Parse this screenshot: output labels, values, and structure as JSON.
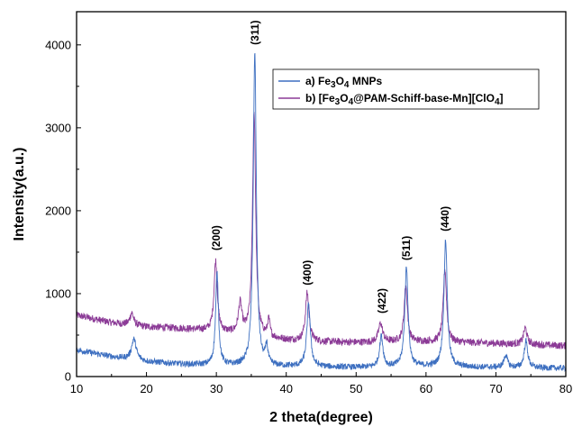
{
  "chart_data": {
    "type": "line",
    "xlabel": "2 theta(degree)",
    "ylabel": "Intensity(a.u.)",
    "xlim": [
      10,
      80
    ],
    "ylim": [
      0,
      4400
    ],
    "x_ticks": [
      "10",
      "20",
      "30",
      "40",
      "50",
      "60",
      "70",
      "80"
    ],
    "y_ticks": [
      "0",
      "1000",
      "2000",
      "3000",
      "4000"
    ],
    "grid": false,
    "legend_position": "top-right",
    "colors": {
      "series_a": "#3d6fc0",
      "series_b": "#8b3a96"
    },
    "legend": {
      "a": {
        "prefix": "a) Fe",
        "sub1": "3",
        "mid": "O",
        "sub2": "4",
        "suffix": " MNPs"
      },
      "b": {
        "prefix": "b) [Fe",
        "sub1": "3",
        "mid": "O",
        "sub2": "4",
        "rest": "@PAM-Schiff-base-Mn][ClO",
        "sub3": "4",
        "suffix": "]"
      }
    },
    "peak_labels": [
      {
        "text": "(200)",
        "x": 30.0,
        "y": 1520
      },
      {
        "text": "(311)",
        "x": 35.5,
        "y": 4000
      },
      {
        "text": "(400)",
        "x": 43.0,
        "y": 1100
      },
      {
        "text": "(422)",
        "x": 53.7,
        "y": 760
      },
      {
        "text": "(511)",
        "x": 57.2,
        "y": 1400
      },
      {
        "text": "(440)",
        "x": 62.7,
        "y": 1750
      }
    ],
    "series": [
      {
        "key": "a",
        "baseline": [
          [
            10,
            320
          ],
          [
            15,
            240
          ],
          [
            20,
            180
          ],
          [
            25,
            150
          ],
          [
            30,
            130
          ],
          [
            40,
            120
          ],
          [
            50,
            110
          ],
          [
            60,
            120
          ],
          [
            70,
            110
          ],
          [
            80,
            100
          ]
        ],
        "peaks": [
          {
            "x": 18.2,
            "h": 250,
            "w": 0.4
          },
          {
            "x": 30.1,
            "h": 1110,
            "w": 0.25
          },
          {
            "x": 35.5,
            "h": 3800,
            "w": 0.26
          },
          {
            "x": 37.2,
            "h": 220,
            "w": 0.2
          },
          {
            "x": 43.2,
            "h": 760,
            "w": 0.3
          },
          {
            "x": 53.6,
            "h": 370,
            "w": 0.3
          },
          {
            "x": 57.2,
            "h": 1200,
            "w": 0.28
          },
          {
            "x": 62.8,
            "h": 1540,
            "w": 0.28
          },
          {
            "x": 71.4,
            "h": 150,
            "w": 0.3
          },
          {
            "x": 74.3,
            "h": 320,
            "w": 0.3
          }
        ],
        "noise": 45
      },
      {
        "key": "b",
        "baseline": [
          [
            10,
            740
          ],
          [
            15,
            650
          ],
          [
            20,
            600
          ],
          [
            25,
            580
          ],
          [
            28,
            560
          ],
          [
            32,
            520
          ],
          [
            40,
            440
          ],
          [
            45,
            420
          ],
          [
            50,
            410
          ],
          [
            60,
            420
          ],
          [
            70,
            400
          ],
          [
            80,
            370
          ]
        ],
        "peaks": [
          {
            "x": 17.9,
            "h": 150,
            "w": 0.3
          },
          {
            "x": 29.9,
            "h": 850,
            "w": 0.28
          },
          {
            "x": 33.4,
            "h": 360,
            "w": 0.3
          },
          {
            "x": 35.4,
            "h": 2700,
            "w": 0.27
          },
          {
            "x": 37.5,
            "h": 200,
            "w": 0.2
          },
          {
            "x": 43.0,
            "h": 580,
            "w": 0.3
          },
          {
            "x": 53.5,
            "h": 230,
            "w": 0.35
          },
          {
            "x": 57.1,
            "h": 680,
            "w": 0.28
          },
          {
            "x": 62.7,
            "h": 880,
            "w": 0.28
          },
          {
            "x": 74.2,
            "h": 200,
            "w": 0.3
          }
        ],
        "noise": 55
      }
    ]
  }
}
